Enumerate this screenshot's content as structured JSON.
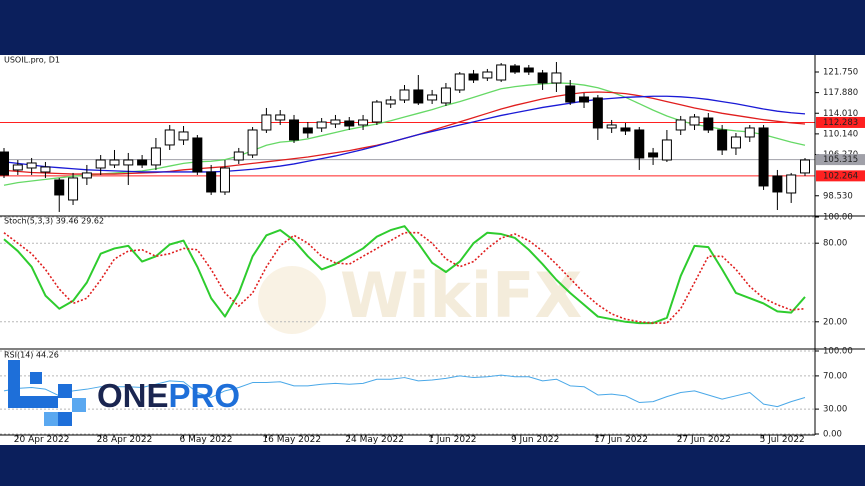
{
  "chart_data": [
    {
      "type": "candlestick",
      "title": "USOIL.pro, D1",
      "categories": [
        null,
        "20 Apr 2022",
        null,
        null,
        null,
        null,
        null,
        "28 Apr 2022",
        null,
        null,
        null,
        null,
        null,
        "6 May 2022",
        null,
        null,
        null,
        null,
        null,
        "16 May 2022",
        null,
        null,
        null,
        null,
        null,
        "24 May 2022",
        null,
        null,
        null,
        null,
        null,
        "1 Jun 2022",
        null,
        null,
        null,
        null,
        null,
        "9 Jun 2022",
        null,
        null,
        null,
        null,
        null,
        "17 Jun 2022",
        null,
        null,
        null,
        null,
        null,
        "27 Jun 2022",
        null,
        null,
        null,
        null,
        null,
        "5 Jul 2022",
        null,
        null,
        null
      ],
      "open": [
        106.74,
        103.37,
        103.74,
        102.99,
        101.49,
        97.74,
        101.87,
        103.74,
        104.31,
        104.31,
        105.24,
        104.31,
        108.06,
        109.0,
        109.37,
        102.99,
        99.24,
        105.24,
        106.18,
        110.87,
        112.75,
        112.75,
        111.25,
        111.25,
        112.0,
        112.56,
        111.81,
        112.37,
        115.75,
        116.5,
        118.38,
        116.5,
        115.94,
        118.38,
        121.38,
        120.63,
        120.25,
        122.88,
        122.5,
        121.57,
        119.69,
        119.13,
        117.06,
        116.88,
        111.25,
        111.25,
        110.87,
        106.56,
        105.24,
        110.87,
        111.81,
        113.12,
        110.87,
        107.5,
        109.56,
        111.25,
        102.24,
        99.05,
        102.81
      ],
      "high": [
        107.5,
        105.24,
        105.62,
        104.87,
        101.87,
        102.81,
        104.31,
        106.18,
        107.12,
        106.56,
        106.18,
        109.37,
        111.81,
        111.62,
        109.93,
        104.31,
        105.24,
        107.5,
        111.43,
        115.0,
        114.62,
        113.69,
        112.37,
        113.12,
        113.69,
        113.31,
        113.69,
        116.5,
        117.25,
        119.31,
        121.19,
        118.38,
        119.69,
        121.75,
        122.13,
        122.32,
        123.44,
        123.25,
        123.07,
        122.13,
        123.63,
        120.25,
        117.81,
        117.44,
        112.75,
        112.19,
        111.43,
        107.5,
        110.87,
        113.5,
        113.87,
        114.06,
        111.81,
        110.31,
        111.81,
        111.81,
        103.37,
        102.81,
        105.62
      ],
      "low": [
        101.87,
        102.43,
        102.43,
        101.87,
        95.49,
        96.8,
        100.55,
        102.43,
        103.74,
        100.55,
        103.74,
        103.37,
        107.12,
        108.06,
        102.43,
        98.68,
        98.68,
        104.49,
        105.62,
        110.31,
        111.81,
        108.43,
        109.37,
        110.5,
        111.25,
        110.87,
        110.87,
        111.81,
        115.0,
        115.94,
        115.56,
        115.75,
        115.37,
        117.81,
        119.69,
        120.06,
        119.88,
        121.38,
        121.19,
        118.38,
        118.0,
        115.56,
        115.0,
        109.0,
        110.31,
        109.93,
        103.37,
        104.31,
        104.87,
        109.93,
        110.87,
        110.31,
        106.18,
        106.18,
        108.62,
        99.62,
        95.86,
        97.18,
        102.24
      ],
      "close": [
        102.43,
        104.31,
        104.68,
        103.93,
        98.68,
        101.87,
        102.81,
        105.24,
        105.24,
        105.24,
        104.31,
        107.5,
        110.87,
        110.5,
        102.99,
        99.24,
        103.74,
        106.74,
        110.87,
        113.69,
        113.69,
        109.0,
        110.31,
        112.37,
        112.75,
        111.62,
        112.75,
        116.12,
        116.5,
        118.38,
        115.94,
        117.44,
        118.75,
        121.38,
        120.25,
        121.75,
        123.07,
        121.75,
        121.75,
        119.69,
        121.57,
        116.12,
        116.12,
        111.25,
        111.81,
        110.68,
        105.62,
        105.81,
        109.0,
        112.75,
        113.31,
        110.87,
        107.12,
        109.56,
        111.25,
        100.37,
        99.24,
        102.43,
        105.24
      ],
      "up_color": "#ffffff",
      "down_color": "#000000",
      "series": [
        {
          "color": "#66d966",
          "values": [
            100.5,
            101.0,
            101.3,
            101.6,
            101.9,
            102.2,
            102.4,
            102.6,
            102.8,
            103.0,
            103.2,
            103.6,
            104.1,
            104.6,
            104.9,
            105.0,
            105.3,
            106.0,
            107.0,
            108.0,
            108.6,
            108.8,
            109.2,
            109.8,
            110.4,
            111.0,
            111.5,
            112.0,
            112.6,
            113.3,
            114.0,
            114.7,
            115.5,
            116.2,
            117.0,
            117.8,
            118.6,
            119.0,
            119.3,
            119.5,
            119.7,
            119.6,
            119.3,
            118.8,
            118.0,
            117.0,
            115.8,
            114.6,
            113.5,
            112.6,
            111.9,
            111.5,
            111.0,
            110.7,
            110.5,
            110.0,
            109.3,
            108.6,
            108.0
          ]
        },
        {
          "color": "#e01e1e",
          "values": [
            103.3,
            103.1,
            102.9,
            102.8,
            102.7,
            102.6,
            102.6,
            102.6,
            102.6,
            102.7,
            102.8,
            102.9,
            103.1,
            103.4,
            103.6,
            103.8,
            104.0,
            104.3,
            104.6,
            104.9,
            105.2,
            105.5,
            105.8,
            106.2,
            106.6,
            107.0,
            107.5,
            108.0,
            108.6,
            109.3,
            110.0,
            110.8,
            111.6,
            112.4,
            113.2,
            114.0,
            114.8,
            115.5,
            116.1,
            116.7,
            117.2,
            117.6,
            117.9,
            118.0,
            117.9,
            117.7,
            117.3,
            116.8,
            116.2,
            115.6,
            115.0,
            114.5,
            114.0,
            113.6,
            113.2,
            112.8,
            112.5,
            112.2,
            112.0
          ]
        },
        {
          "color": "#1a1ad6",
          "values": [
            104.9,
            104.6,
            104.3,
            104.0,
            103.8,
            103.6,
            103.4,
            103.3,
            103.2,
            103.1,
            103.0,
            103.0,
            103.0,
            103.0,
            103.0,
            103.0,
            103.1,
            103.3,
            103.5,
            103.8,
            104.1,
            104.5,
            105.0,
            105.5,
            106.0,
            106.6,
            107.2,
            107.9,
            108.6,
            109.3,
            110.0,
            110.6,
            111.2,
            111.8,
            112.4,
            113.0,
            113.6,
            114.1,
            114.6,
            115.1,
            115.5,
            115.9,
            116.3,
            116.6,
            116.8,
            117.0,
            117.1,
            117.2,
            117.2,
            117.1,
            116.9,
            116.6,
            116.2,
            115.8,
            115.3,
            114.8,
            114.4,
            114.1,
            113.9
          ]
        }
      ],
      "hlines": [
        {
          "value": 112.283,
          "color": "#ff2020",
          "text_color": "#ffffff"
        },
        {
          "value": 105.315,
          "color": "#a0a0a8",
          "text_color": "#000000"
        },
        {
          "value": 102.264,
          "color": "#ff2020",
          "text_color": "#ffffff"
        }
      ],
      "ylim": [
        94.92,
        124.94
      ],
      "yticks": [
        {
          "value": 121.75,
          "label": "121.750"
        },
        {
          "value": 117.88,
          "label": "117.880"
        },
        {
          "value": 114.01,
          "label": "114.010"
        },
        {
          "value": 110.14,
          "label": "110.140"
        },
        {
          "value": 106.27,
          "label": "106.270"
        },
        {
          "value": 98.53,
          "label": "98.530"
        }
      ]
    },
    {
      "type": "line",
      "title": "Stoch(5,3,3) 39.46 29.62",
      "series": [
        {
          "color": "#2ecc2e",
          "width": 2,
          "dash": false,
          "values": [
            83,
            74,
            62,
            40,
            30,
            36,
            50,
            72,
            76,
            78,
            66,
            70,
            79,
            82,
            62,
            38,
            24,
            42,
            70,
            86,
            90,
            82,
            70,
            60,
            64,
            70,
            76,
            85,
            90,
            93,
            80,
            65,
            58,
            66,
            80,
            88,
            87,
            84,
            75,
            64,
            52,
            42,
            33,
            24,
            22,
            20,
            19,
            19,
            23,
            55,
            78,
            77,
            60,
            42,
            38,
            34,
            28,
            27,
            39
          ]
        },
        {
          "color": "#e01e1e",
          "width": 1.6,
          "dash": true,
          "values": [
            88,
            80,
            72,
            60,
            45,
            34,
            38,
            52,
            68,
            74,
            75,
            70,
            72,
            76,
            75,
            60,
            42,
            32,
            42,
            62,
            78,
            86,
            80,
            70,
            65,
            64,
            70,
            76,
            82,
            88,
            88,
            80,
            68,
            62,
            66,
            76,
            84,
            87,
            82,
            74,
            64,
            53,
            42,
            33,
            26,
            22,
            20,
            19,
            19,
            30,
            50,
            70,
            70,
            60,
            47,
            38,
            33,
            29,
            30
          ]
        }
      ],
      "ylim": [
        0,
        100
      ],
      "yticks": [
        {
          "value": 100,
          "label": "100.00"
        },
        {
          "value": 80,
          "label": "80.00"
        },
        {
          "value": 20,
          "label": "20.00"
        }
      ],
      "grid": true
    },
    {
      "type": "line",
      "title": "RSI(14) 44.26",
      "series": [
        {
          "color": "#4aa8e8",
          "width": 1,
          "dash": false,
          "values": [
            52,
            55,
            56,
            54,
            46,
            52,
            54,
            57,
            57,
            57,
            56,
            60,
            64,
            63,
            50,
            44,
            52,
            56,
            62,
            62,
            63,
            58,
            58,
            60,
            61,
            60,
            61,
            66,
            66,
            68,
            64,
            65,
            67,
            70,
            68,
            69,
            71,
            69,
            69,
            64,
            66,
            58,
            57,
            47,
            48,
            46,
            38,
            39,
            45,
            50,
            52,
            47,
            42,
            46,
            50,
            36,
            33,
            39,
            44
          ]
        }
      ],
      "ylim": [
        0,
        100
      ],
      "yticks": [
        {
          "value": 100,
          "label": "100.00"
        },
        {
          "value": 70,
          "label": "70.00"
        },
        {
          "value": 30,
          "label": "30.00"
        },
        {
          "value": 0,
          "label": "0.00"
        }
      ],
      "grid": true
    }
  ],
  "watermark": "WikiFX",
  "brand": {
    "part_1": "ONE",
    "part_2": "PRO"
  }
}
